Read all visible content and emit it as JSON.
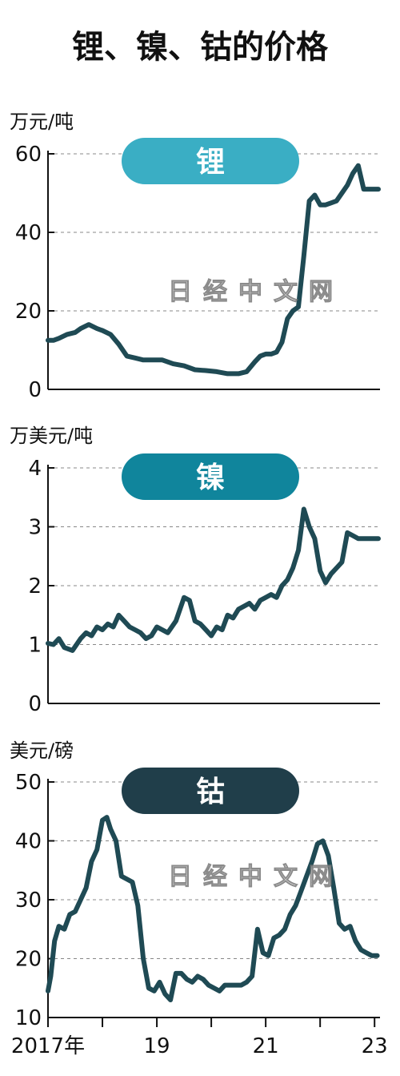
{
  "title": "锂、镍、钴的价格",
  "watermark": "日经中文网",
  "colors": {
    "line": "#1f4a54",
    "grid": "#888888",
    "axis": "#111111"
  },
  "chart_data": [
    {
      "type": "line",
      "badge": "锂",
      "badge_color": "#3aaec4",
      "ylabel": "万元/吨",
      "ylim": [
        0,
        60
      ],
      "yticks": [
        0,
        20,
        40,
        60
      ],
      "x": [
        2017.0,
        2017.1,
        2017.2,
        2017.35,
        2017.5,
        2017.6,
        2017.75,
        2017.9,
        2018.0,
        2018.15,
        2018.3,
        2018.45,
        2018.6,
        2018.75,
        2018.9,
        2019.1,
        2019.3,
        2019.5,
        2019.7,
        2019.9,
        2020.1,
        2020.3,
        2020.5,
        2020.65,
        2020.8,
        2020.9,
        2021.0,
        2021.1,
        2021.2,
        2021.3,
        2021.4,
        2021.5,
        2021.6,
        2021.7,
        2021.8,
        2021.9,
        2022.0,
        2022.1,
        2022.2,
        2022.3,
        2022.4,
        2022.5,
        2022.6,
        2022.7,
        2022.8,
        2022.9,
        2023.0,
        2023.07
      ],
      "y": [
        12.5,
        12.5,
        13.0,
        14.0,
        14.5,
        15.5,
        16.5,
        15.5,
        15.0,
        14.0,
        11.5,
        8.5,
        8.0,
        7.5,
        7.5,
        7.5,
        6.5,
        6.0,
        5.0,
        4.8,
        4.5,
        4.0,
        4.0,
        4.5,
        7.0,
        8.5,
        9.0,
        9.0,
        9.5,
        12.0,
        18.0,
        20.0,
        21.0,
        34.0,
        48.0,
        49.5,
        47.0,
        47.0,
        47.5,
        48.0,
        50.0,
        52.0,
        55.0,
        57.0,
        51.0,
        51.0,
        51.0,
        51.0
      ],
      "title": "",
      "xlabel": ""
    },
    {
      "type": "line",
      "badge": "镍",
      "badge_color": "#10859c",
      "ylabel": "万美元/吨",
      "ylim": [
        0,
        4
      ],
      "yticks": [
        0,
        1,
        2,
        3,
        4
      ],
      "x": [
        2017.0,
        2017.1,
        2017.2,
        2017.3,
        2017.45,
        2017.6,
        2017.7,
        2017.8,
        2017.9,
        2018.0,
        2018.1,
        2018.2,
        2018.3,
        2018.4,
        2018.5,
        2018.6,
        2018.7,
        2018.8,
        2018.9,
        2019.0,
        2019.1,
        2019.2,
        2019.35,
        2019.5,
        2019.6,
        2019.7,
        2019.8,
        2019.9,
        2020.0,
        2020.1,
        2020.2,
        2020.3,
        2020.4,
        2020.5,
        2020.6,
        2020.7,
        2020.8,
        2020.9,
        2021.0,
        2021.1,
        2021.2,
        2021.3,
        2021.4,
        2021.5,
        2021.6,
        2021.7,
        2021.8,
        2021.9,
        2022.0,
        2022.1,
        2022.2,
        2022.3,
        2022.4,
        2022.5,
        2022.6,
        2022.7,
        2022.8,
        2022.9,
        2023.0,
        2023.07
      ],
      "y": [
        1.02,
        1.0,
        1.1,
        0.95,
        0.9,
        1.1,
        1.2,
        1.15,
        1.3,
        1.25,
        1.35,
        1.3,
        1.5,
        1.4,
        1.3,
        1.25,
        1.2,
        1.1,
        1.15,
        1.3,
        1.25,
        1.2,
        1.4,
        1.8,
        1.75,
        1.4,
        1.35,
        1.25,
        1.15,
        1.3,
        1.25,
        1.5,
        1.45,
        1.6,
        1.65,
        1.7,
        1.6,
        1.75,
        1.8,
        1.85,
        1.8,
        2.0,
        2.1,
        2.3,
        2.6,
        3.3,
        3.0,
        2.8,
        2.25,
        2.05,
        2.2,
        2.3,
        2.4,
        2.9,
        2.85,
        2.8,
        2.8,
        2.8,
        2.8,
        2.8
      ],
      "title": "",
      "xlabel": ""
    },
    {
      "type": "line",
      "badge": "钴",
      "badge_color": "#203e4a",
      "ylabel": "美元/磅",
      "ylim": [
        10,
        50
      ],
      "yticks": [
        10,
        20,
        30,
        40,
        50
      ],
      "x": [
        2017.0,
        2017.05,
        2017.12,
        2017.2,
        2017.3,
        2017.4,
        2017.5,
        2017.6,
        2017.7,
        2017.8,
        2017.9,
        2018.0,
        2018.08,
        2018.15,
        2018.25,
        2018.35,
        2018.45,
        2018.55,
        2018.65,
        2018.75,
        2018.85,
        2018.95,
        2019.05,
        2019.15,
        2019.25,
        2019.35,
        2019.45,
        2019.55,
        2019.65,
        2019.75,
        2019.85,
        2019.95,
        2020.05,
        2020.15,
        2020.25,
        2020.35,
        2020.45,
        2020.55,
        2020.65,
        2020.75,
        2020.85,
        2020.95,
        2021.05,
        2021.15,
        2021.25,
        2021.35,
        2021.45,
        2021.55,
        2021.65,
        2021.75,
        2021.85,
        2021.95,
        2022.05,
        2022.15,
        2022.25,
        2022.35,
        2022.45,
        2022.55,
        2022.65,
        2022.75,
        2022.85,
        2022.95,
        2023.05
      ],
      "y": [
        14.5,
        17.0,
        23.0,
        25.5,
        25.0,
        27.5,
        28.0,
        30.0,
        32.0,
        36.5,
        38.5,
        43.5,
        44.0,
        42.0,
        40.0,
        34.0,
        33.5,
        33.0,
        29.0,
        20.0,
        15.0,
        14.5,
        16.0,
        14.0,
        13.0,
        17.5,
        17.5,
        16.5,
        16.0,
        17.0,
        16.5,
        15.5,
        15.0,
        14.5,
        15.5,
        15.5,
        15.5,
        15.5,
        16.0,
        17.0,
        25.0,
        21.0,
        20.5,
        23.5,
        24.0,
        25.0,
        27.5,
        29.0,
        31.5,
        34.0,
        36.5,
        39.5,
        40.0,
        37.5,
        32.0,
        26.0,
        25.0,
        25.5,
        23.0,
        21.5,
        21.0,
        20.5,
        20.5
      ],
      "title": "",
      "xlabel": ""
    }
  ],
  "x_axis": {
    "range": [
      2017.0,
      2023.1
    ],
    "ticks": [
      2017,
      2018,
      2019,
      2020,
      2021,
      2022,
      2023
    ],
    "tick_labels": [
      {
        "value": 2017,
        "label": "2017年"
      },
      {
        "value": 2019,
        "label": "19"
      },
      {
        "value": 2021,
        "label": "21"
      },
      {
        "value": 2023,
        "label": "23"
      }
    ]
  }
}
